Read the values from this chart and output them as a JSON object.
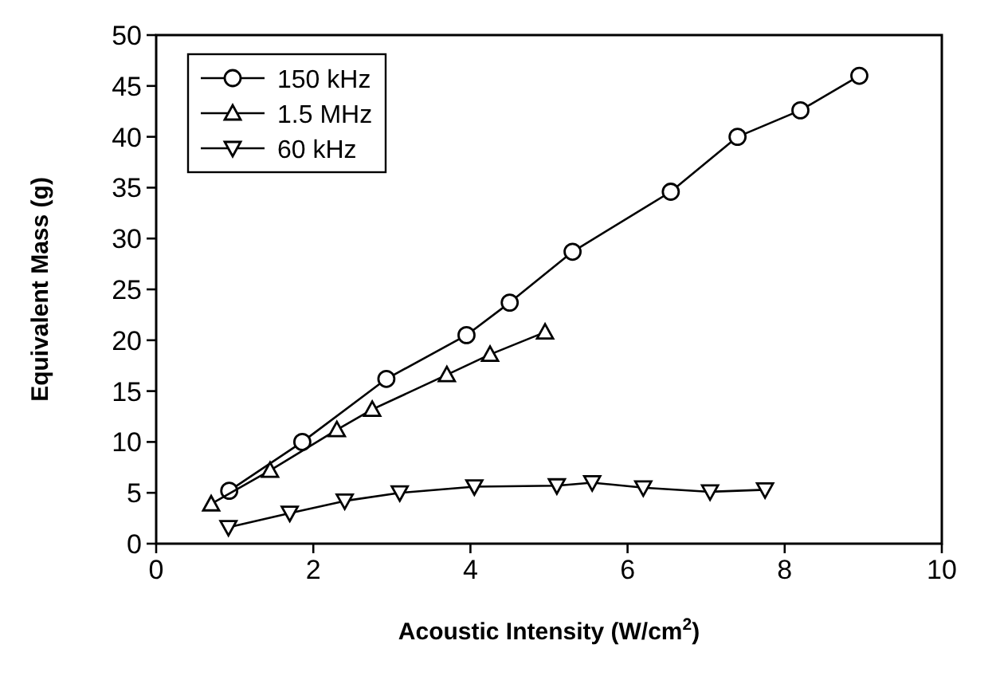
{
  "chart_data": {
    "type": "line",
    "xlabel": "Acoustic Intensity (W/cm$^{2}$)",
    "ylabel": "Equivalent Mass (g)",
    "xlim": [
      0,
      10
    ],
    "xticks": [
      0,
      2,
      4,
      6,
      8,
      10
    ],
    "ylim": [
      0,
      50
    ],
    "yticks": [
      0,
      5,
      10,
      15,
      20,
      25,
      30,
      35,
      40,
      45,
      50
    ],
    "legend": "top left",
    "line_style": "solid",
    "series": [
      {
        "name": "150 kHz",
        "color": "#000000",
        "marker": "circle",
        "x": [
          0.93,
          1.86,
          2.93,
          3.95,
          4.5,
          5.3,
          6.55,
          7.4,
          8.2,
          8.95
        ],
        "values": [
          5.2,
          10,
          16.2,
          20.5,
          23.7,
          28.7,
          34.6,
          40,
          42.6,
          46
        ]
      },
      {
        "name": "1.5 MHz",
        "color": "#000000",
        "marker": "triangle",
        "x": [
          0.7,
          1.45,
          2.3,
          2.75,
          3.7,
          4.25,
          4.95
        ],
        "values": [
          3.9,
          7.2,
          11.2,
          13.2,
          16.6,
          18.6,
          20.8
        ]
      },
      {
        "name": "60 kHz",
        "color": "#000000",
        "marker": "triangle-down",
        "x": [
          0.92,
          1.7,
          2.4,
          3.1,
          4.05,
          5.1,
          5.55,
          6.2,
          7.05,
          7.75
        ],
        "values": [
          1.6,
          3,
          4.2,
          5,
          5.6,
          5.7,
          6,
          5.5,
          5.1,
          5.3
        ]
      }
    ]
  }
}
